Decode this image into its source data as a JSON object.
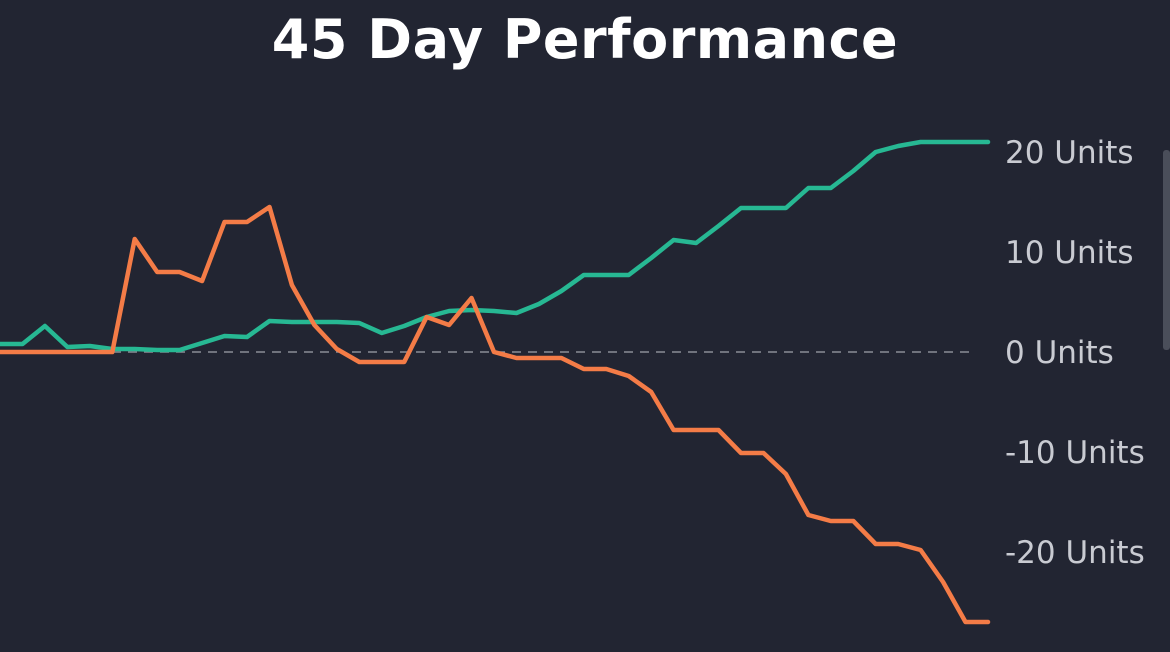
{
  "title": "45 Day Performance",
  "colors": {
    "background": "#222532",
    "series_a": "#27b893",
    "series_b": "#f47c47",
    "zero_line": "#8a8d96",
    "tick_text": "#c9cbd2"
  },
  "chart_data": {
    "type": "line",
    "title": "45 Day Performance",
    "xlabel": "",
    "ylabel": "",
    "ylim": [
      -27,
      20.5
    ],
    "yticks": [
      {
        "value": 20,
        "label": "20 Units"
      },
      {
        "value": 10,
        "label": "10 Units"
      },
      {
        "value": 0,
        "label": "0 Units"
      },
      {
        "value": -10,
        "label": "-10 Units"
      },
      {
        "value": -20,
        "label": "-20 Units"
      }
    ],
    "y_axis_position": "right",
    "grid": false,
    "zero_line": "dashed",
    "x": [
      1,
      2,
      3,
      4,
      5,
      6,
      7,
      8,
      9,
      10,
      11,
      12,
      13,
      14,
      15,
      16,
      17,
      18,
      19,
      20,
      21,
      22,
      23,
      24,
      25,
      26,
      27,
      28,
      29,
      30,
      31,
      32,
      33,
      34,
      35,
      36,
      37,
      38,
      39,
      40,
      41,
      42,
      43,
      44,
      45
    ],
    "series": [
      {
        "color": "#27b893",
        "values": [
          0.8,
          0.8,
          2.6,
          0.5,
          0.6,
          0.3,
          0.3,
          0.2,
          0.2,
          0.9,
          1.6,
          1.5,
          3.1,
          3.0,
          3.0,
          3.0,
          2.9,
          1.9,
          2.6,
          3.5,
          4.1,
          4.2,
          4.1,
          3.9,
          4.8,
          6.1,
          7.7,
          7.7,
          7.7,
          9.4,
          11.2,
          10.9,
          12.6,
          14.4,
          14.4,
          14.4,
          16.4,
          16.4,
          18.1,
          20.0,
          20.6,
          21.0,
          21.0,
          21.0,
          21.0
        ]
      },
      {
        "color": "#f47c47",
        "values": [
          0.0,
          0.0,
          0.0,
          0.0,
          0.0,
          0.0,
          11.3,
          8.0,
          8.0,
          7.1,
          13.0,
          13.0,
          14.5,
          6.7,
          2.7,
          0.3,
          -1.0,
          -1.0,
          -1.0,
          3.5,
          2.7,
          5.4,
          0.0,
          -0.6,
          -0.6,
          -0.6,
          -1.7,
          -1.7,
          -2.4,
          -4.0,
          -7.8,
          -7.8,
          -7.8,
          -10.1,
          -10.1,
          -12.2,
          -16.3,
          -16.9,
          -16.9,
          -19.2,
          -19.2,
          -19.8,
          -23.0,
          -27.0,
          -27.0
        ]
      }
    ]
  }
}
